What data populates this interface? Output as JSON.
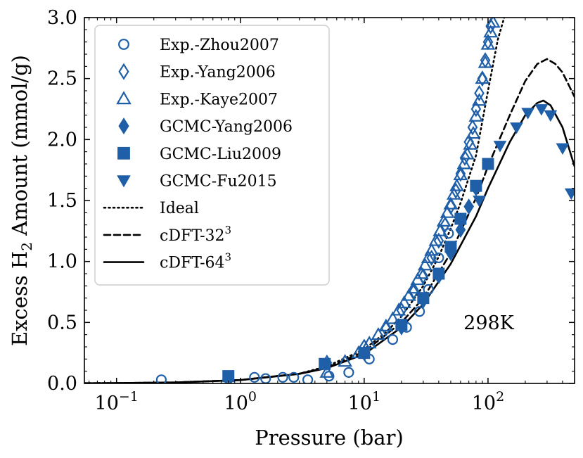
{
  "chart_data": {
    "type": "scatter",
    "title": "",
    "xlabel": "Pressure (bar)",
    "ylabel_parts": {
      "pre": "Excess H",
      "sub": "2",
      "post": " Amount (mmol/g)"
    },
    "xscale": "log",
    "xlim": [
      0.055,
      500
    ],
    "ylim": [
      0.0,
      3.0
    ],
    "x_ticks": [
      {
        "value": 0.1,
        "base": "10",
        "exp": "−1"
      },
      {
        "value": 1,
        "base": "10",
        "exp": "0"
      },
      {
        "value": 10,
        "base": "10",
        "exp": "1"
      },
      {
        "value": 100,
        "base": "10",
        "exp": "2"
      }
    ],
    "y_ticks": [
      {
        "value": 0.0,
        "label": "0.0"
      },
      {
        "value": 0.5,
        "label": "0.5"
      },
      {
        "value": 1.0,
        "label": "1.0"
      },
      {
        "value": 1.5,
        "label": "1.5"
      },
      {
        "value": 2.0,
        "label": "2.0"
      },
      {
        "value": 2.5,
        "label": "2.5"
      },
      {
        "value": 3.0,
        "label": "3.0"
      }
    ],
    "annotation": "298K",
    "legend_position": "upper-left",
    "color": "#1f5fa8",
    "series": [
      {
        "name": "Exp.-Zhou2007",
        "marker": "circle-open",
        "x": [
          0.23,
          0.8,
          1.3,
          1.6,
          2.2,
          2.7,
          3.5,
          5.2,
          7.5,
          11,
          17,
          22,
          28,
          33,
          40,
          48
        ],
        "y": [
          0.03,
          0.04,
          0.05,
          0.04,
          0.05,
          0.05,
          0.03,
          0.06,
          0.09,
          0.2,
          0.36,
          0.46,
          0.59,
          0.77,
          1.03,
          1.23
        ]
      },
      {
        "name": "Exp.-Yang2006",
        "marker": "diamond-open",
        "x": [
          5,
          10,
          15,
          20,
          25,
          30,
          35,
          40,
          45,
          50,
          55,
          60,
          65,
          70,
          75,
          80,
          85,
          90,
          95,
          100,
          105
        ],
        "y": [
          0.17,
          0.3,
          0.45,
          0.6,
          0.75,
          0.88,
          1.03,
          1.17,
          1.3,
          1.45,
          1.58,
          1.72,
          1.85,
          1.98,
          2.1,
          2.25,
          2.38,
          2.5,
          2.65,
          2.8,
          2.93
        ]
      },
      {
        "name": "Exp.-Kaye2007",
        "marker": "triangle-up-open",
        "x": [
          5,
          7,
          9,
          11,
          13,
          15,
          17,
          19,
          21,
          23,
          25,
          27,
          29,
          31,
          33,
          35,
          38,
          41,
          44,
          47,
          50,
          53,
          56,
          60,
          64,
          68,
          72,
          76,
          80,
          85,
          90,
          95,
          100,
          105,
          110
        ],
        "y": [
          0.09,
          0.18,
          0.25,
          0.33,
          0.4,
          0.47,
          0.53,
          0.6,
          0.66,
          0.72,
          0.78,
          0.85,
          0.9,
          0.97,
          1.03,
          1.09,
          1.17,
          1.25,
          1.33,
          1.4,
          1.47,
          1.55,
          1.62,
          1.71,
          1.8,
          1.88,
          1.96,
          2.05,
          2.19,
          2.32,
          2.5,
          2.63,
          2.78,
          2.88,
          2.96
        ]
      },
      {
        "name": "GCMC-Yang2006",
        "marker": "diamond-filled",
        "x": [
          10,
          20,
          30,
          40,
          50,
          60,
          70,
          80
        ],
        "y": [
          0.25,
          0.46,
          0.68,
          0.88,
          1.07,
          1.26,
          1.45,
          1.6
        ]
      },
      {
        "name": "GCMC-Liu2009",
        "marker": "square-filled",
        "x": [
          0.8,
          4.8,
          10,
          20,
          30,
          40,
          50,
          60,
          80,
          100
        ],
        "y": [
          0.06,
          0.16,
          0.25,
          0.48,
          0.7,
          0.9,
          1.12,
          1.35,
          1.62,
          1.8
        ]
      },
      {
        "name": "GCMC-Fu2015",
        "marker": "triangle-down-filled",
        "x": [
          85,
          125,
          170,
          210,
          270,
          320,
          400,
          470
        ],
        "y": [
          1.5,
          1.95,
          2.1,
          2.22,
          2.25,
          2.2,
          1.93,
          1.56
        ]
      }
    ],
    "lines": [
      {
        "name": "Ideal",
        "style": "dotted",
        "x": [
          0.055,
          0.1,
          0.3,
          1,
          3,
          5,
          10,
          15,
          20,
          30,
          40,
          50,
          60,
          80,
          100,
          120,
          135
        ],
        "y": [
          0.0015,
          0.003,
          0.008,
          0.028,
          0.08,
          0.14,
          0.28,
          0.42,
          0.55,
          0.8,
          1.04,
          1.27,
          1.48,
          1.87,
          2.4,
          2.82,
          3.0
        ]
      },
      {
        "name": "cDFT-32",
        "style": "dashed",
        "x": [
          0.055,
          0.1,
          0.3,
          1,
          3,
          5,
          10,
          20,
          30,
          50,
          80,
          100,
          150,
          200,
          250,
          300,
          350,
          400,
          500
        ],
        "y": [
          0.0015,
          0.003,
          0.008,
          0.028,
          0.08,
          0.13,
          0.26,
          0.5,
          0.7,
          1.07,
          1.52,
          1.78,
          2.2,
          2.48,
          2.62,
          2.66,
          2.62,
          2.55,
          2.35
        ]
      },
      {
        "name": "cDFT-64",
        "style": "solid",
        "x": [
          0.055,
          0.1,
          0.3,
          1,
          3,
          5,
          10,
          20,
          30,
          50,
          80,
          100,
          150,
          200,
          250,
          280,
          320,
          400,
          500
        ],
        "y": [
          0.0015,
          0.003,
          0.008,
          0.027,
          0.078,
          0.125,
          0.24,
          0.46,
          0.65,
          0.98,
          1.37,
          1.6,
          1.98,
          2.2,
          2.3,
          2.32,
          2.28,
          2.1,
          1.78
        ]
      }
    ],
    "legend": [
      {
        "label": "Exp.-Zhou2007",
        "sup": "",
        "kind": "marker",
        "marker": "circle-open"
      },
      {
        "label": "Exp.-Yang2006",
        "sup": "",
        "kind": "marker",
        "marker": "diamond-open"
      },
      {
        "label": "Exp.-Kaye2007",
        "sup": "",
        "kind": "marker",
        "marker": "triangle-up-open"
      },
      {
        "label": "GCMC-Yang2006",
        "sup": "",
        "kind": "marker",
        "marker": "diamond-filled"
      },
      {
        "label": "GCMC-Liu2009",
        "sup": "",
        "kind": "marker",
        "marker": "square-filled"
      },
      {
        "label": "GCMC-Fu2015",
        "sup": "",
        "kind": "marker",
        "marker": "triangle-down-filled"
      },
      {
        "label": "Ideal",
        "sup": "",
        "kind": "line",
        "style": "dotted"
      },
      {
        "label": "cDFT-32",
        "sup": "3",
        "kind": "line",
        "style": "dashed"
      },
      {
        "label": "cDFT-64",
        "sup": "3",
        "kind": "line",
        "style": "solid"
      }
    ]
  }
}
